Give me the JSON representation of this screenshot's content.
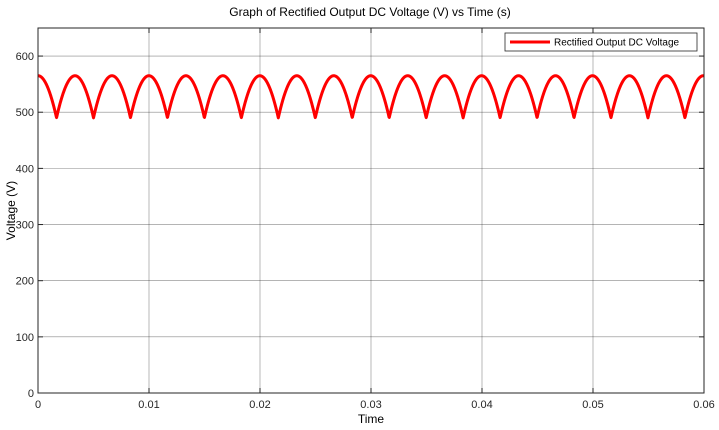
{
  "chart_data": {
    "type": "line",
    "title": "Graph of Rectified Output DC Voltage (V) vs Time (s)",
    "xlabel": "Time",
    "ylabel": "Voltage (V)",
    "xlim": [
      0,
      0.06
    ],
    "ylim": [
      0,
      650
    ],
    "xticks": [
      0,
      0.01,
      0.02,
      0.03,
      0.04,
      0.05,
      0.06
    ],
    "xtick_labels": [
      "0",
      "0.01",
      "0.02",
      "0.03",
      "0.04",
      "0.05",
      "0.06"
    ],
    "yticks": [
      0,
      100,
      200,
      300,
      400,
      500,
      600
    ],
    "ytick_labels": [
      "0",
      "100",
      "200",
      "300",
      "400",
      "500",
      "600"
    ],
    "grid": true,
    "legend_position": "top-right",
    "series": [
      {
        "name": "Rectified Output DC Voltage",
        "color": "#ff0000",
        "waveform": "six-pulse rectified ripple",
        "peak_voltage": 565,
        "trough_voltage": 490,
        "ripple_period": 0.00333,
        "first_trough_time": 0.00167
      }
    ]
  }
}
